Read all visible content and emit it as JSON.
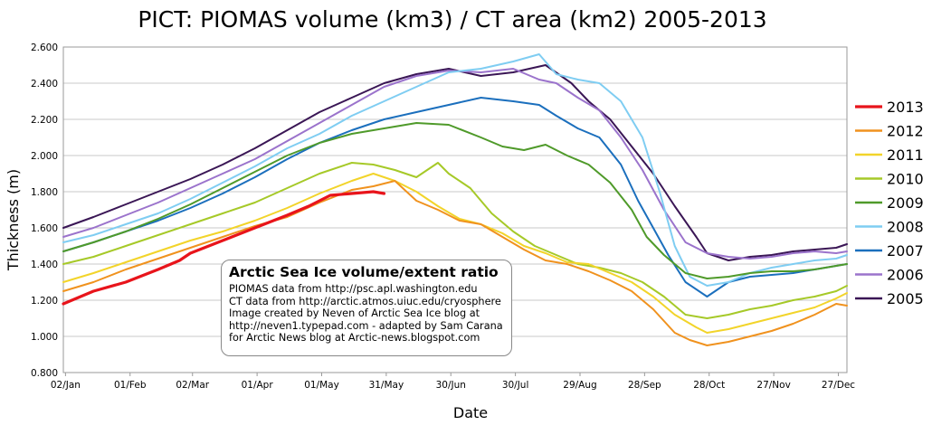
{
  "chart_data": {
    "type": "line",
    "title": "PICT: PIOMAS volume (km3) / CT area (km2) 2005-2013",
    "xlabel": "Date",
    "ylabel": "Thickness (m)",
    "ylim": [
      0.8,
      2.6
    ],
    "xlim": [
      1,
      365
    ],
    "yticks": [
      "0.800",
      "1.000",
      "1.200",
      "1.400",
      "1.600",
      "1.800",
      "2.000",
      "2.200",
      "2.400",
      "2.600"
    ],
    "xtick_labels": [
      "02/Jan",
      "01/Feb",
      "02/Mar",
      "01/Apr",
      "01/May",
      "31/May",
      "30/Jun",
      "30/Jul",
      "29/Aug",
      "28/Sep",
      "28/Oct",
      "27/Nov",
      "27/Dec"
    ],
    "xtick_days": [
      2,
      32,
      61,
      91,
      121,
      151,
      181,
      211,
      241,
      271,
      301,
      331,
      361
    ],
    "grid": true,
    "legend_position": "right",
    "series": [
      {
        "name": "2013",
        "color": "#e8141b",
        "x": [
          1,
          15,
          30,
          45,
          55,
          60,
          75,
          90,
          105,
          115,
          125,
          135,
          145,
          150
        ],
        "values": [
          1.18,
          1.25,
          1.3,
          1.37,
          1.42,
          1.46,
          1.53,
          1.6,
          1.67,
          1.72,
          1.78,
          1.79,
          1.8,
          1.79
        ]
      },
      {
        "name": "2012",
        "color": "#f0921e",
        "x": [
          1,
          15,
          30,
          45,
          60,
          75,
          90,
          105,
          120,
          135,
          145,
          155,
          165,
          175,
          185,
          195,
          205,
          215,
          225,
          235,
          245,
          255,
          265,
          275,
          285,
          292,
          300,
          310,
          320,
          330,
          340,
          350,
          360,
          365
        ],
        "values": [
          1.25,
          1.3,
          1.37,
          1.43,
          1.49,
          1.55,
          1.61,
          1.66,
          1.74,
          1.81,
          1.83,
          1.86,
          1.75,
          1.7,
          1.64,
          1.62,
          1.55,
          1.48,
          1.42,
          1.4,
          1.36,
          1.31,
          1.25,
          1.15,
          1.02,
          0.98,
          0.95,
          0.97,
          1.0,
          1.03,
          1.07,
          1.12,
          1.18,
          1.17
        ]
      },
      {
        "name": "2011",
        "color": "#f2d42a",
        "x": [
          1,
          15,
          30,
          45,
          60,
          75,
          90,
          105,
          120,
          135,
          145,
          155,
          165,
          175,
          185,
          195,
          205,
          215,
          225,
          235,
          245,
          255,
          265,
          275,
          285,
          295,
          300,
          310,
          320,
          330,
          340,
          350,
          360,
          365
        ],
        "values": [
          1.3,
          1.35,
          1.41,
          1.47,
          1.53,
          1.58,
          1.64,
          1.71,
          1.79,
          1.86,
          1.9,
          1.86,
          1.8,
          1.72,
          1.65,
          1.62,
          1.57,
          1.5,
          1.46,
          1.41,
          1.4,
          1.35,
          1.3,
          1.22,
          1.12,
          1.05,
          1.02,
          1.04,
          1.07,
          1.1,
          1.13,
          1.16,
          1.21,
          1.24
        ]
      },
      {
        "name": "2010",
        "color": "#a6c928",
        "x": [
          1,
          15,
          30,
          45,
          60,
          75,
          90,
          105,
          120,
          135,
          145,
          155,
          165,
          175,
          180,
          190,
          200,
          210,
          220,
          230,
          240,
          250,
          260,
          270,
          280,
          290,
          300,
          310,
          320,
          330,
          340,
          350,
          360,
          365
        ],
        "values": [
          1.4,
          1.44,
          1.5,
          1.56,
          1.62,
          1.68,
          1.74,
          1.82,
          1.9,
          1.96,
          1.95,
          1.92,
          1.88,
          1.96,
          1.9,
          1.82,
          1.68,
          1.58,
          1.5,
          1.45,
          1.4,
          1.38,
          1.35,
          1.3,
          1.22,
          1.12,
          1.1,
          1.12,
          1.15,
          1.17,
          1.2,
          1.22,
          1.25,
          1.28
        ]
      },
      {
        "name": "2009",
        "color": "#4f9a2a",
        "x": [
          1,
          15,
          30,
          45,
          60,
          75,
          90,
          105,
          120,
          135,
          150,
          165,
          180,
          195,
          205,
          215,
          225,
          235,
          245,
          255,
          265,
          272,
          280,
          290,
          300,
          310,
          320,
          330,
          340,
          350,
          360,
          365
        ],
        "values": [
          1.47,
          1.52,
          1.58,
          1.65,
          1.73,
          1.82,
          1.91,
          2.0,
          2.07,
          2.12,
          2.15,
          2.18,
          2.17,
          2.1,
          2.05,
          2.03,
          2.06,
          2.0,
          1.95,
          1.85,
          1.7,
          1.55,
          1.45,
          1.35,
          1.32,
          1.33,
          1.35,
          1.36,
          1.36,
          1.37,
          1.39,
          1.4
        ]
      },
      {
        "name": "2008",
        "color": "#7fcdf2",
        "x": [
          1,
          15,
          30,
          45,
          60,
          75,
          90,
          105,
          120,
          135,
          150,
          165,
          180,
          195,
          210,
          222,
          230,
          240,
          250,
          260,
          270,
          278,
          285,
          292,
          300,
          310,
          320,
          330,
          340,
          350,
          360,
          365
        ],
        "values": [
          1.52,
          1.56,
          1.62,
          1.68,
          1.76,
          1.85,
          1.94,
          2.04,
          2.12,
          2.22,
          2.3,
          2.38,
          2.46,
          2.48,
          2.52,
          2.56,
          2.45,
          2.42,
          2.4,
          2.3,
          2.1,
          1.8,
          1.5,
          1.33,
          1.28,
          1.3,
          1.35,
          1.38,
          1.4,
          1.42,
          1.43,
          1.45
        ]
      },
      {
        "name": "2007",
        "color": "#1b6fbd",
        "x": [
          1,
          15,
          30,
          45,
          60,
          75,
          90,
          105,
          120,
          135,
          150,
          165,
          180,
          195,
          210,
          222,
          230,
          240,
          250,
          260,
          268,
          275,
          282,
          290,
          300,
          310,
          320,
          330,
          340,
          350,
          360,
          365
        ],
        "values": [
          1.47,
          1.52,
          1.58,
          1.64,
          1.71,
          1.79,
          1.88,
          1.98,
          2.07,
          2.14,
          2.2,
          2.24,
          2.28,
          2.32,
          2.3,
          2.28,
          2.22,
          2.15,
          2.1,
          1.95,
          1.75,
          1.6,
          1.45,
          1.3,
          1.22,
          1.3,
          1.33,
          1.34,
          1.35,
          1.37,
          1.39,
          1.4
        ]
      },
      {
        "name": "2006",
        "color": "#9b73cc",
        "x": [
          1,
          15,
          30,
          45,
          60,
          75,
          90,
          105,
          120,
          135,
          150,
          165,
          180,
          195,
          210,
          222,
          230,
          240,
          250,
          260,
          270,
          280,
          290,
          300,
          310,
          320,
          330,
          340,
          350,
          360,
          365
        ],
        "values": [
          1.55,
          1.6,
          1.67,
          1.74,
          1.82,
          1.9,
          1.98,
          2.08,
          2.18,
          2.28,
          2.38,
          2.44,
          2.47,
          2.46,
          2.48,
          2.42,
          2.4,
          2.32,
          2.25,
          2.1,
          1.92,
          1.7,
          1.52,
          1.46,
          1.44,
          1.43,
          1.44,
          1.46,
          1.47,
          1.46,
          1.47
        ]
      },
      {
        "name": "2005",
        "color": "#3a1655",
        "x": [
          1,
          15,
          30,
          45,
          60,
          75,
          90,
          105,
          120,
          135,
          150,
          165,
          180,
          195,
          210,
          225,
          237,
          245,
          255,
          265,
          275,
          285,
          295,
          300,
          310,
          320,
          330,
          340,
          350,
          360,
          365
        ],
        "values": [
          1.6,
          1.66,
          1.73,
          1.8,
          1.87,
          1.95,
          2.04,
          2.14,
          2.24,
          2.32,
          2.4,
          2.45,
          2.48,
          2.44,
          2.46,
          2.5,
          2.4,
          2.3,
          2.2,
          2.05,
          1.9,
          1.72,
          1.55,
          1.46,
          1.42,
          1.44,
          1.45,
          1.47,
          1.48,
          1.49,
          1.51
        ]
      }
    ],
    "annotation": {
      "title": "Arctic Sea Ice volume/extent ratio",
      "lines": [
        "PIOMAS data from http://psc.apl.washington.edu",
        "CT data from http://arctic.atmos.uiuc.edu/cryosphere",
        "Image created by Neven of Arctic Sea Ice blog at",
        "http://neven1.typepad.com - adapted by Sam Carana",
        "for Arctic News blog at Arctic-news.blogspot.com"
      ]
    }
  }
}
